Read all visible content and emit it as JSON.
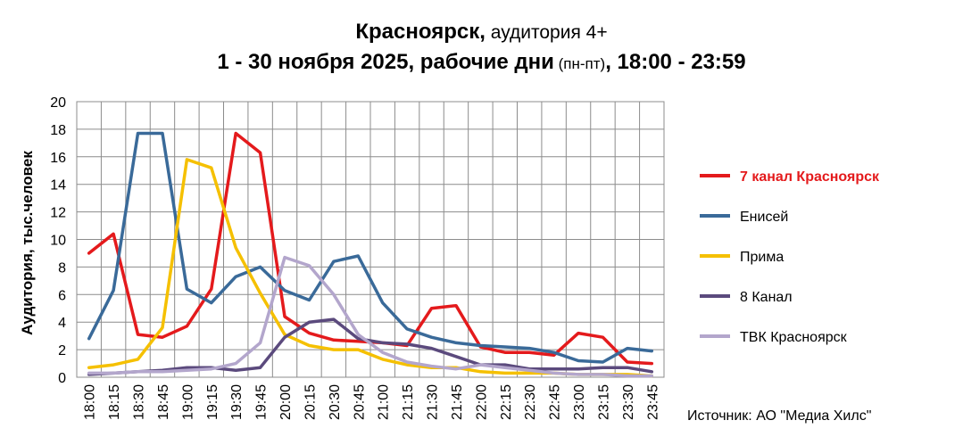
{
  "title": {
    "line1_bold": "Красноярск,",
    "line1_normal": " аудитория 4+",
    "line2_bold_a": "1 - 30 ноября 2025, рабочие дни",
    "line2_small": " (пн-пт)",
    "line2_bold_b": ", 18:00 - 23:59"
  },
  "source": "Источник: АО \"Медиа Хилс\"",
  "chart_data": {
    "type": "line",
    "ylabel": "Аудитория, тыс.человек",
    "ylim": [
      0,
      20
    ],
    "yticks": [
      "0",
      "2",
      "4",
      "6",
      "8",
      "10",
      "12",
      "14",
      "16",
      "18",
      "20"
    ],
    "grid": true,
    "legend_position": "right",
    "categories": [
      "18:00",
      "18:15",
      "18:30",
      "18:45",
      "19:00",
      "19:15",
      "19:30",
      "19:45",
      "20:00",
      "20:15",
      "20:30",
      "20:45",
      "21:00",
      "21:15",
      "21:30",
      "21:45",
      "22:00",
      "22:15",
      "22:30",
      "22:45",
      "23:00",
      "23:15",
      "23:30",
      "23:45"
    ],
    "series": [
      {
        "name": "7 канал Красноярск",
        "color": "#e41a1c",
        "highlight": true,
        "values": [
          9.0,
          10.4,
          3.1,
          2.9,
          3.7,
          6.4,
          17.7,
          16.3,
          4.4,
          3.2,
          2.7,
          2.6,
          2.5,
          2.3,
          5.0,
          5.2,
          2.2,
          1.8,
          1.8,
          1.6,
          3.2,
          2.9,
          1.1,
          1.0
        ]
      },
      {
        "name": "Енисей",
        "color": "#3a6a99",
        "highlight": false,
        "values": [
          2.8,
          6.3,
          17.7,
          17.7,
          6.4,
          5.4,
          7.3,
          8.0,
          6.3,
          5.6,
          8.4,
          8.8,
          5.4,
          3.5,
          2.9,
          2.5,
          2.3,
          2.2,
          2.1,
          1.8,
          1.2,
          1.1,
          2.1,
          1.9
        ]
      },
      {
        "name": "Прима",
        "color": "#f5c000",
        "highlight": false,
        "values": [
          0.7,
          0.9,
          1.3,
          3.6,
          15.8,
          15.2,
          9.4,
          6.1,
          3.1,
          2.3,
          2.0,
          2.0,
          1.3,
          0.9,
          0.7,
          0.7,
          0.4,
          0.3,
          0.3,
          0.3,
          0.2,
          0.2,
          0.2,
          0.1
        ]
      },
      {
        "name": "8 Канал",
        "color": "#5b4a7d",
        "highlight": false,
        "values": [
          0.2,
          0.3,
          0.4,
          0.5,
          0.7,
          0.7,
          0.5,
          0.7,
          2.9,
          4.0,
          4.2,
          2.8,
          2.5,
          2.4,
          2.1,
          1.5,
          0.9,
          0.9,
          0.6,
          0.6,
          0.6,
          0.7,
          0.7,
          0.4
        ]
      },
      {
        "name": "ТВК Красноярск",
        "color": "#b3a6cc",
        "highlight": false,
        "values": [
          0.3,
          0.3,
          0.4,
          0.4,
          0.5,
          0.6,
          1.0,
          2.5,
          8.7,
          8.1,
          6.0,
          3.1,
          1.8,
          1.1,
          0.8,
          0.6,
          0.9,
          0.7,
          0.5,
          0.3,
          0.2,
          0.2,
          0.1,
          0.1
        ]
      }
    ]
  }
}
